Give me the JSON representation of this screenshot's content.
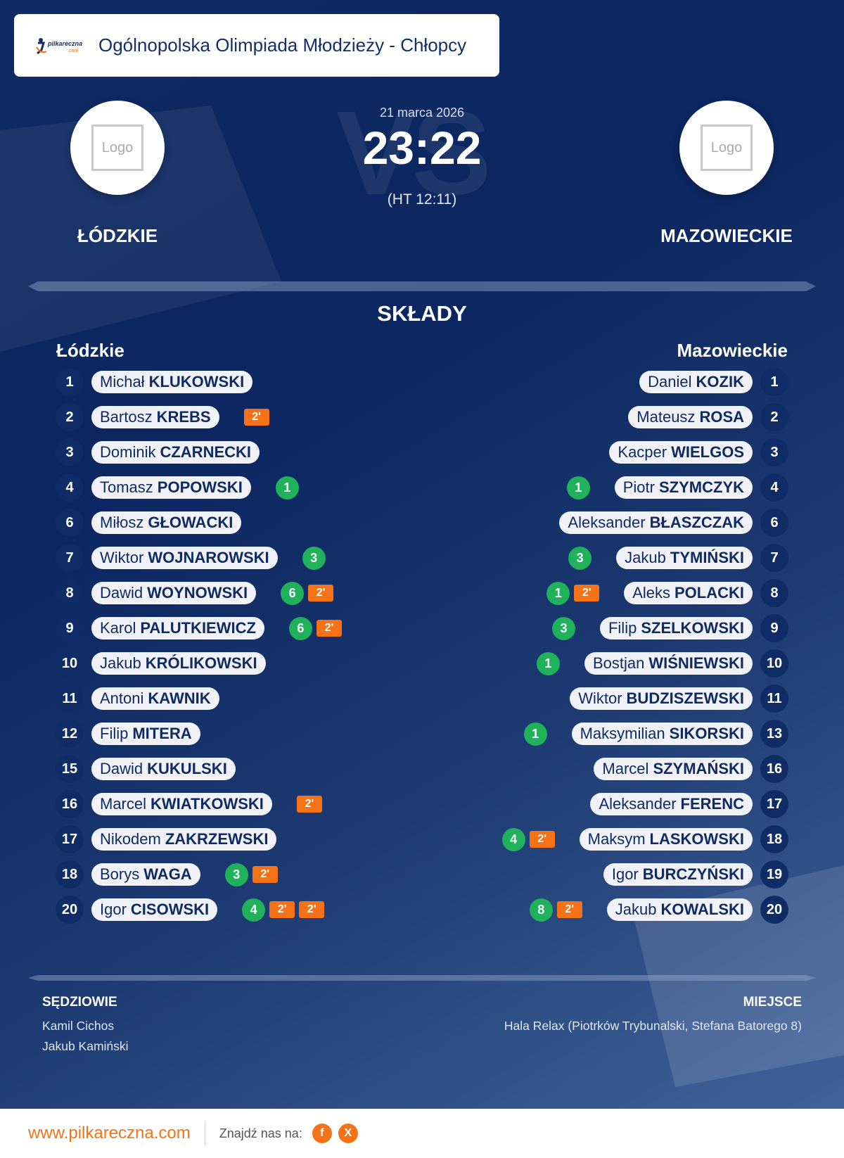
{
  "header": {
    "title": "Ogólnopolska Olimpiada Młodzieży - Chłopcy",
    "brand": "pilkareczna.com"
  },
  "match": {
    "date": "21 marca 2026",
    "score": "23:22",
    "halftime": "(HT 12:11)",
    "vs": "VS",
    "home": {
      "name": "ŁÓDZKIE",
      "logo": "Logo"
    },
    "away": {
      "name": "MAZOWIECKIE",
      "logo": "Logo"
    }
  },
  "lineups": {
    "title": "SKŁADY",
    "home_label": "Łódzkie",
    "away_label": "Mazowieckie",
    "home": [
      {
        "num": "1",
        "first": "Michał",
        "last": "KLUKOWSKI",
        "goals": null,
        "penalties": []
      },
      {
        "num": "2",
        "first": "Bartosz",
        "last": "KREBS",
        "goals": null,
        "penalties": [
          "2'"
        ]
      },
      {
        "num": "3",
        "first": "Dominik",
        "last": "CZARNECKI",
        "goals": null,
        "penalties": []
      },
      {
        "num": "4",
        "first": "Tomasz",
        "last": "POPOWSKI",
        "goals": "1",
        "penalties": []
      },
      {
        "num": "6",
        "first": "Miłosz",
        "last": "GŁOWACKI",
        "goals": null,
        "penalties": []
      },
      {
        "num": "7",
        "first": "Wiktor",
        "last": "WOJNAROWSKI",
        "goals": "3",
        "penalties": []
      },
      {
        "num": "8",
        "first": "Dawid",
        "last": "WOYNOWSKI",
        "goals": "6",
        "penalties": [
          "2'"
        ]
      },
      {
        "num": "9",
        "first": "Karol",
        "last": "PALUTKIEWICZ",
        "goals": "6",
        "penalties": [
          "2'"
        ]
      },
      {
        "num": "10",
        "first": "Jakub",
        "last": "KRÓLIKOWSKI",
        "goals": null,
        "penalties": []
      },
      {
        "num": "11",
        "first": "Antoni",
        "last": "KAWNIK",
        "goals": null,
        "penalties": []
      },
      {
        "num": "12",
        "first": "Filip",
        "last": "MITERA",
        "goals": null,
        "penalties": []
      },
      {
        "num": "15",
        "first": "Dawid",
        "last": "KUKULSKI",
        "goals": null,
        "penalties": []
      },
      {
        "num": "16",
        "first": "Marcel",
        "last": "KWIATKOWSKI",
        "goals": null,
        "penalties": [
          "2'"
        ]
      },
      {
        "num": "17",
        "first": "Nikodem",
        "last": "ZAKRZEWSKI",
        "goals": null,
        "penalties": []
      },
      {
        "num": "18",
        "first": "Borys",
        "last": "WAGA",
        "goals": "3",
        "penalties": [
          "2'"
        ]
      },
      {
        "num": "20",
        "first": "Igor",
        "last": "CISOWSKI",
        "goals": "4",
        "penalties": [
          "2'",
          "2'"
        ]
      }
    ],
    "away": [
      {
        "num": "1",
        "first": "Daniel",
        "last": "KOZIK",
        "goals": null,
        "penalties": []
      },
      {
        "num": "2",
        "first": "Mateusz",
        "last": "ROSA",
        "goals": null,
        "penalties": []
      },
      {
        "num": "3",
        "first": "Kacper",
        "last": "WIELGOS",
        "goals": null,
        "penalties": []
      },
      {
        "num": "4",
        "first": "Piotr",
        "last": "SZYMCZYK",
        "goals": "1",
        "penalties": []
      },
      {
        "num": "6",
        "first": "Aleksander",
        "last": "BŁASZCZAK",
        "goals": null,
        "penalties": []
      },
      {
        "num": "7",
        "first": "Jakub",
        "last": "TYMIŃSKI",
        "goals": "3",
        "penalties": []
      },
      {
        "num": "8",
        "first": "Aleks",
        "last": "POLACKI",
        "goals": "1",
        "penalties": [
          "2'"
        ]
      },
      {
        "num": "9",
        "first": "Filip",
        "last": "SZELKOWSKI",
        "goals": "3",
        "penalties": []
      },
      {
        "num": "10",
        "first": "Bostjan",
        "last": "WIŚNIEWSKI",
        "goals": "1",
        "penalties": []
      },
      {
        "num": "11",
        "first": "Wiktor",
        "last": "BUDZISZEWSKI",
        "goals": null,
        "penalties": []
      },
      {
        "num": "13",
        "first": "Maksymilian",
        "last": "SIKORSKI",
        "goals": "1",
        "penalties": []
      },
      {
        "num": "16",
        "first": "Marcel",
        "last": "SZYMAŃSKI",
        "goals": null,
        "penalties": []
      },
      {
        "num": "17",
        "first": "Aleksander",
        "last": "FERENC",
        "goals": null,
        "penalties": []
      },
      {
        "num": "18",
        "first": "Maksym",
        "last": "LASKOWSKI",
        "goals": "4",
        "penalties": [
          "2'"
        ]
      },
      {
        "num": "19",
        "first": "Igor",
        "last": "BURCZYŃSKI",
        "goals": null,
        "penalties": []
      },
      {
        "num": "20",
        "first": "Jakub",
        "last": "KOWALSKI",
        "goals": "8",
        "penalties": [
          "2'"
        ]
      }
    ]
  },
  "officials": {
    "label": "SĘDZIOWIE",
    "names": [
      "Kamil Cichos",
      "Jakub Kamiński"
    ]
  },
  "venue": {
    "label": "MIEJSCE",
    "value": "Hala Relax (Piotrków Trybunalski, Stefana Batorego 8)"
  },
  "footer": {
    "site": "www.pilkareczna.com",
    "find_us": "Znajdź nas na:",
    "social": [
      {
        "icon": "facebook-icon",
        "glyph": "f"
      },
      {
        "icon": "x-icon",
        "glyph": "X"
      }
    ]
  },
  "colors": {
    "navy": "#0f2c66",
    "goal": "#1fb25a",
    "penalty": "#f57316",
    "pill": "#f0f2f7"
  }
}
